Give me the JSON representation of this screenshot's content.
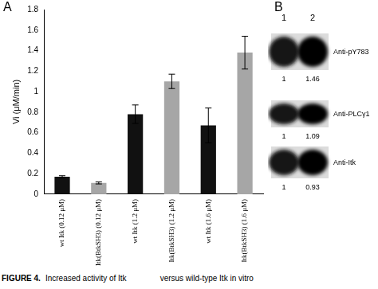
{
  "figure": {
    "panels": [
      "A",
      "B"
    ],
    "caption": [
      "FIGURE 4.",
      "Increased activity of Itk",
      "versus wild-type Itk in vitro"
    ]
  },
  "chart_data": {
    "type": "bar",
    "y_label": "Vi (μM/min)",
    "categories": [
      "wt Itk (0.12 μM)",
      "Itk(BtkSH3) (0.12 μM)",
      "wt Itk (1.2 μM)",
      "Itk(BtkSH3) (1.2 μM)",
      "wt Itk (1.6 μM)",
      "Itk(BtkSH3) (1.6 μM)"
    ],
    "values": [
      0.17,
      0.11,
      0.78,
      1.1,
      0.67,
      1.38
    ],
    "errors": [
      0.01,
      0.01,
      0.09,
      0.07,
      0.17,
      0.16
    ],
    "colors": [
      "#111111",
      "#a6a6a6",
      "#111111",
      "#a6a6a6",
      "#111111",
      "#a6a6a6"
    ],
    "ylim": [
      0,
      1.8
    ],
    "yticks": [
      0,
      0.2,
      0.4,
      0.6,
      0.8,
      1,
      1.2,
      1.4,
      1.6,
      1.8
    ],
    "grid": false
  },
  "blot": {
    "lanes": [
      "1",
      "2"
    ],
    "rows": [
      {
        "label": "Anti-pY783",
        "values": [
          1,
          1.46
        ]
      },
      {
        "label": "Anti-PLCγ1",
        "values": [
          1,
          1.09
        ]
      },
      {
        "label": "Anti-Itk",
        "values": [
          1,
          0.93
        ]
      }
    ]
  }
}
